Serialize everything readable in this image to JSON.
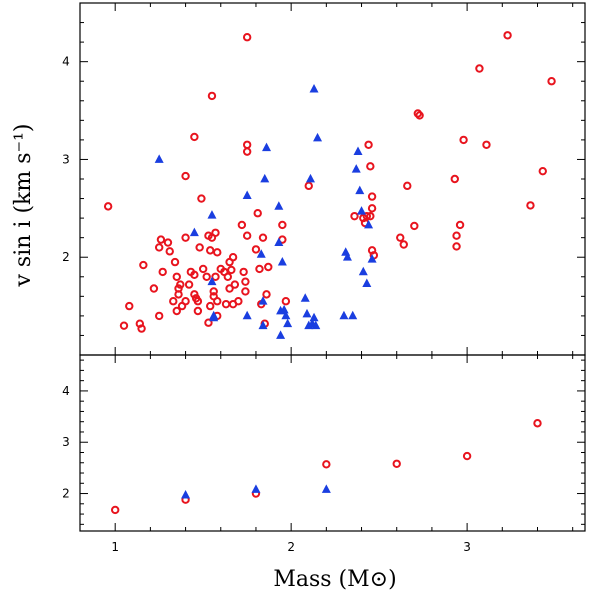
{
  "chart_data": {
    "type": "scatter",
    "xlabel": "Mass (M⊙)",
    "ylabel": "v sin i  (km s⁻¹)",
    "xlim": [
      0.8,
      3.67
    ],
    "x_ticks": [
      "1",
      "2",
      "3"
    ],
    "colors": {
      "circle": "#e8141e",
      "triangle": "#1a3ee0",
      "axis": "#000000"
    },
    "panels": [
      {
        "name": "top",
        "ylim": [
          1.0,
          4.6
        ],
        "y_ticks": [
          "2",
          "3",
          "4"
        ],
        "series": [
          {
            "name": "red circles",
            "marker": "circle",
            "points": [
              [
                0.96,
                2.52
              ],
              [
                1.05,
                1.3
              ],
              [
                1.08,
                1.5
              ],
              [
                1.14,
                1.32
              ],
              [
                1.15,
                1.27
              ],
              [
                1.16,
                1.92
              ],
              [
                1.22,
                1.68
              ],
              [
                1.25,
                2.1
              ],
              [
                1.25,
                1.4
              ],
              [
                1.26,
                2.18
              ],
              [
                1.27,
                1.85
              ],
              [
                1.3,
                2.15
              ],
              [
                1.31,
                2.06
              ],
              [
                1.33,
                1.55
              ],
              [
                1.34,
                1.95
              ],
              [
                1.35,
                1.8
              ],
              [
                1.35,
                1.45
              ],
              [
                1.36,
                1.68
              ],
              [
                1.36,
                1.62
              ],
              [
                1.37,
                1.72
              ],
              [
                1.38,
                1.5
              ],
              [
                1.4,
                2.83
              ],
              [
                1.4,
                1.55
              ],
              [
                1.4,
                2.2
              ],
              [
                1.42,
                1.72
              ],
              [
                1.43,
                1.85
              ],
              [
                1.45,
                3.23
              ],
              [
                1.45,
                1.82
              ],
              [
                1.45,
                1.62
              ],
              [
                1.46,
                1.58
              ],
              [
                1.47,
                1.55
              ],
              [
                1.47,
                1.45
              ],
              [
                1.48,
                2.1
              ],
              [
                1.49,
                2.6
              ],
              [
                1.5,
                1.88
              ],
              [
                1.52,
                1.8
              ],
              [
                1.53,
                2.22
              ],
              [
                1.53,
                1.33
              ],
              [
                1.54,
                1.5
              ],
              [
                1.54,
                2.07
              ],
              [
                1.55,
                3.65
              ],
              [
                1.55,
                2.2
              ],
              [
                1.56,
                1.65
              ],
              [
                1.56,
                1.6
              ],
              [
                1.57,
                1.8
              ],
              [
                1.57,
                2.25
              ],
              [
                1.58,
                2.05
              ],
              [
                1.58,
                1.55
              ],
              [
                1.58,
                1.4
              ],
              [
                1.6,
                1.88
              ],
              [
                1.62,
                1.85
              ],
              [
                1.63,
                1.52
              ],
              [
                1.64,
                1.8
              ],
              [
                1.65,
                1.95
              ],
              [
                1.65,
                1.68
              ],
              [
                1.66,
                1.87
              ],
              [
                1.67,
                2.0
              ],
              [
                1.67,
                1.52
              ],
              [
                1.68,
                1.72
              ],
              [
                1.7,
                1.55
              ],
              [
                1.72,
                2.33
              ],
              [
                1.73,
                1.85
              ],
              [
                1.74,
                1.75
              ],
              [
                1.74,
                1.65
              ],
              [
                1.75,
                4.25
              ],
              [
                1.75,
                3.15
              ],
              [
                1.75,
                3.08
              ],
              [
                1.75,
                2.22
              ],
              [
                1.8,
                2.08
              ],
              [
                1.81,
                2.45
              ],
              [
                1.82,
                1.88
              ],
              [
                1.83,
                1.52
              ],
              [
                1.84,
                2.2
              ],
              [
                1.85,
                1.32
              ],
              [
                1.86,
                1.62
              ],
              [
                1.87,
                1.9
              ],
              [
                1.95,
                2.33
              ],
              [
                1.95,
                2.18
              ],
              [
                1.97,
                1.55
              ],
              [
                2.1,
                2.73
              ],
              [
                2.36,
                2.42
              ],
              [
                2.41,
                2.4
              ],
              [
                2.42,
                2.35
              ],
              [
                2.43,
                2.42
              ],
              [
                2.44,
                3.15
              ],
              [
                2.45,
                2.93
              ],
              [
                2.45,
                2.42
              ],
              [
                2.46,
                2.62
              ],
              [
                2.46,
                2.5
              ],
              [
                2.46,
                2.07
              ],
              [
                2.47,
                2.02
              ],
              [
                2.62,
                2.2
              ],
              [
                2.64,
                2.13
              ],
              [
                2.66,
                2.73
              ],
              [
                2.7,
                2.32
              ],
              [
                2.72,
                3.47
              ],
              [
                2.73,
                3.45
              ],
              [
                2.93,
                2.8
              ],
              [
                2.94,
                2.22
              ],
              [
                2.94,
                2.11
              ],
              [
                2.96,
                2.33
              ],
              [
                2.98,
                3.2
              ],
              [
                3.07,
                3.93
              ],
              [
                3.11,
                3.15
              ],
              [
                3.23,
                4.27
              ],
              [
                3.36,
                2.53
              ],
              [
                3.43,
                2.88
              ],
              [
                3.48,
                3.8
              ]
            ]
          },
          {
            "name": "blue triangles",
            "marker": "triangle",
            "points": [
              [
                1.25,
                3.0
              ],
              [
                1.45,
                2.25
              ],
              [
                1.55,
                2.43
              ],
              [
                1.55,
                1.75
              ],
              [
                1.56,
                1.4
              ],
              [
                1.56,
                1.38
              ],
              [
                1.75,
                2.63
              ],
              [
                1.75,
                1.4
              ],
              [
                1.83,
                2.03
              ],
              [
                1.84,
                1.55
              ],
              [
                1.84,
                1.3
              ],
              [
                1.85,
                2.8
              ],
              [
                1.86,
                3.12
              ],
              [
                1.93,
                2.52
              ],
              [
                1.93,
                2.15
              ],
              [
                1.94,
                1.45
              ],
              [
                1.94,
                1.2
              ],
              [
                1.95,
                1.95
              ],
              [
                1.96,
                1.46
              ],
              [
                1.97,
                1.4
              ],
              [
                1.98,
                1.32
              ],
              [
                2.08,
                1.58
              ],
              [
                2.09,
                1.42
              ],
              [
                2.1,
                1.3
              ],
              [
                2.11,
                2.8
              ],
              [
                2.12,
                1.32
              ],
              [
                2.13,
                3.72
              ],
              [
                2.13,
                1.38
              ],
              [
                2.14,
                1.3
              ],
              [
                2.15,
                3.22
              ],
              [
                2.3,
                1.4
              ],
              [
                2.31,
                2.05
              ],
              [
                2.32,
                2.0
              ],
              [
                2.35,
                1.4
              ],
              [
                2.37,
                2.9
              ],
              [
                2.38,
                3.08
              ],
              [
                2.39,
                2.68
              ],
              [
                2.4,
                2.47
              ],
              [
                2.41,
                1.85
              ],
              [
                2.43,
                1.73
              ],
              [
                2.44,
                2.33
              ],
              [
                2.46,
                1.98
              ]
            ]
          }
        ]
      },
      {
        "name": "bottom",
        "ylim": [
          1.27,
          4.7
        ],
        "y_ticks": [
          "2",
          "3",
          "4"
        ],
        "series": [
          {
            "name": "red circles",
            "marker": "circle",
            "points": [
              [
                1.0,
                1.68
              ],
              [
                1.4,
                1.88
              ],
              [
                1.8,
                2.0
              ],
              [
                2.2,
                2.57
              ],
              [
                2.6,
                2.58
              ],
              [
                3.0,
                2.73
              ],
              [
                3.4,
                3.37
              ]
            ]
          },
          {
            "name": "blue triangles",
            "marker": "triangle",
            "points": [
              [
                1.4,
                1.97
              ],
              [
                1.8,
                2.08
              ],
              [
                2.2,
                2.08
              ]
            ]
          }
        ]
      }
    ]
  }
}
